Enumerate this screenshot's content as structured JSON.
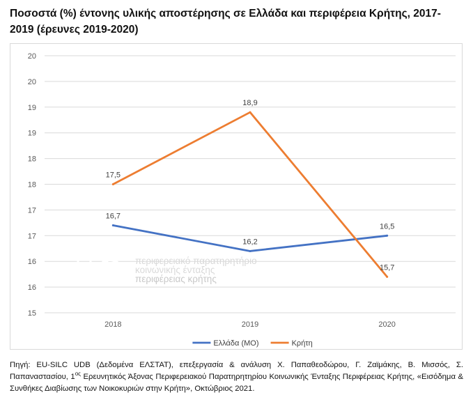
{
  "title": "Ποσοστά (%) έντονης υλικής αποστέρησης σε Ελλάδα και περιφέρεια Κρήτης, 2017-2019 (έρευνες 2019-2020)",
  "chart_data": {
    "type": "line",
    "title": "Ποσοστά (%) έντονης υλικής αποστέρησης σε Ελλάδα και περιφέρεια Κρήτης, 2017-2019 (έρευνες 2019-2020)",
    "categories": [
      "2018",
      "2019",
      "2020"
    ],
    "ylim": [
      15,
      20
    ],
    "yticks": [
      15,
      15.5,
      16,
      16.5,
      17,
      17.5,
      18,
      18.5,
      19,
      19.5,
      20
    ],
    "ytick_labels": [
      "15",
      "16",
      "16",
      "17",
      "17",
      "18",
      "18",
      "19",
      "19",
      "20",
      "20"
    ],
    "grid": true,
    "legend_position": "bottom",
    "series": [
      {
        "name": "Ελλάδα (ΜΟ)",
        "color": "#4472c4",
        "values": [
          16.7,
          16.2,
          16.5
        ],
        "labels": [
          "16,7",
          "16,2",
          "16,5"
        ]
      },
      {
        "name": "Κρήτη",
        "color": "#ed7d31",
        "values": [
          17.5,
          18.9,
          15.7
        ],
        "labels": [
          "17,5",
          "18,9",
          "15,7"
        ]
      }
    ]
  },
  "watermark": {
    "line1": "περιφερειακό παρατηρητήριο",
    "line2": "κοινωνικής ένταξης",
    "line3": "περιφέρειας κρήτης"
  },
  "source": {
    "part1": "Πηγή: EU-SILC UDB (Δεδομένα ΕΛΣΤΑΤ), επεξεργασία & ανάλυση Χ. Παπαθεοδώρου, Γ. Ζαϊμάκης, Β. Μισσός, Σ. Παπαναστασίου, 1",
    "sup": "ος",
    "part2": " Ερευνητικός Άξονας Περιφερειακού Παρατηρητηρίου Κοινωνικής Ένταξης Περιφέρειας Κρήτης, «Εισόδημα & Συνθήκες Διαβίωσης των Νοικοκυριών στην Κρήτη», Οκτώβριος 2021."
  }
}
